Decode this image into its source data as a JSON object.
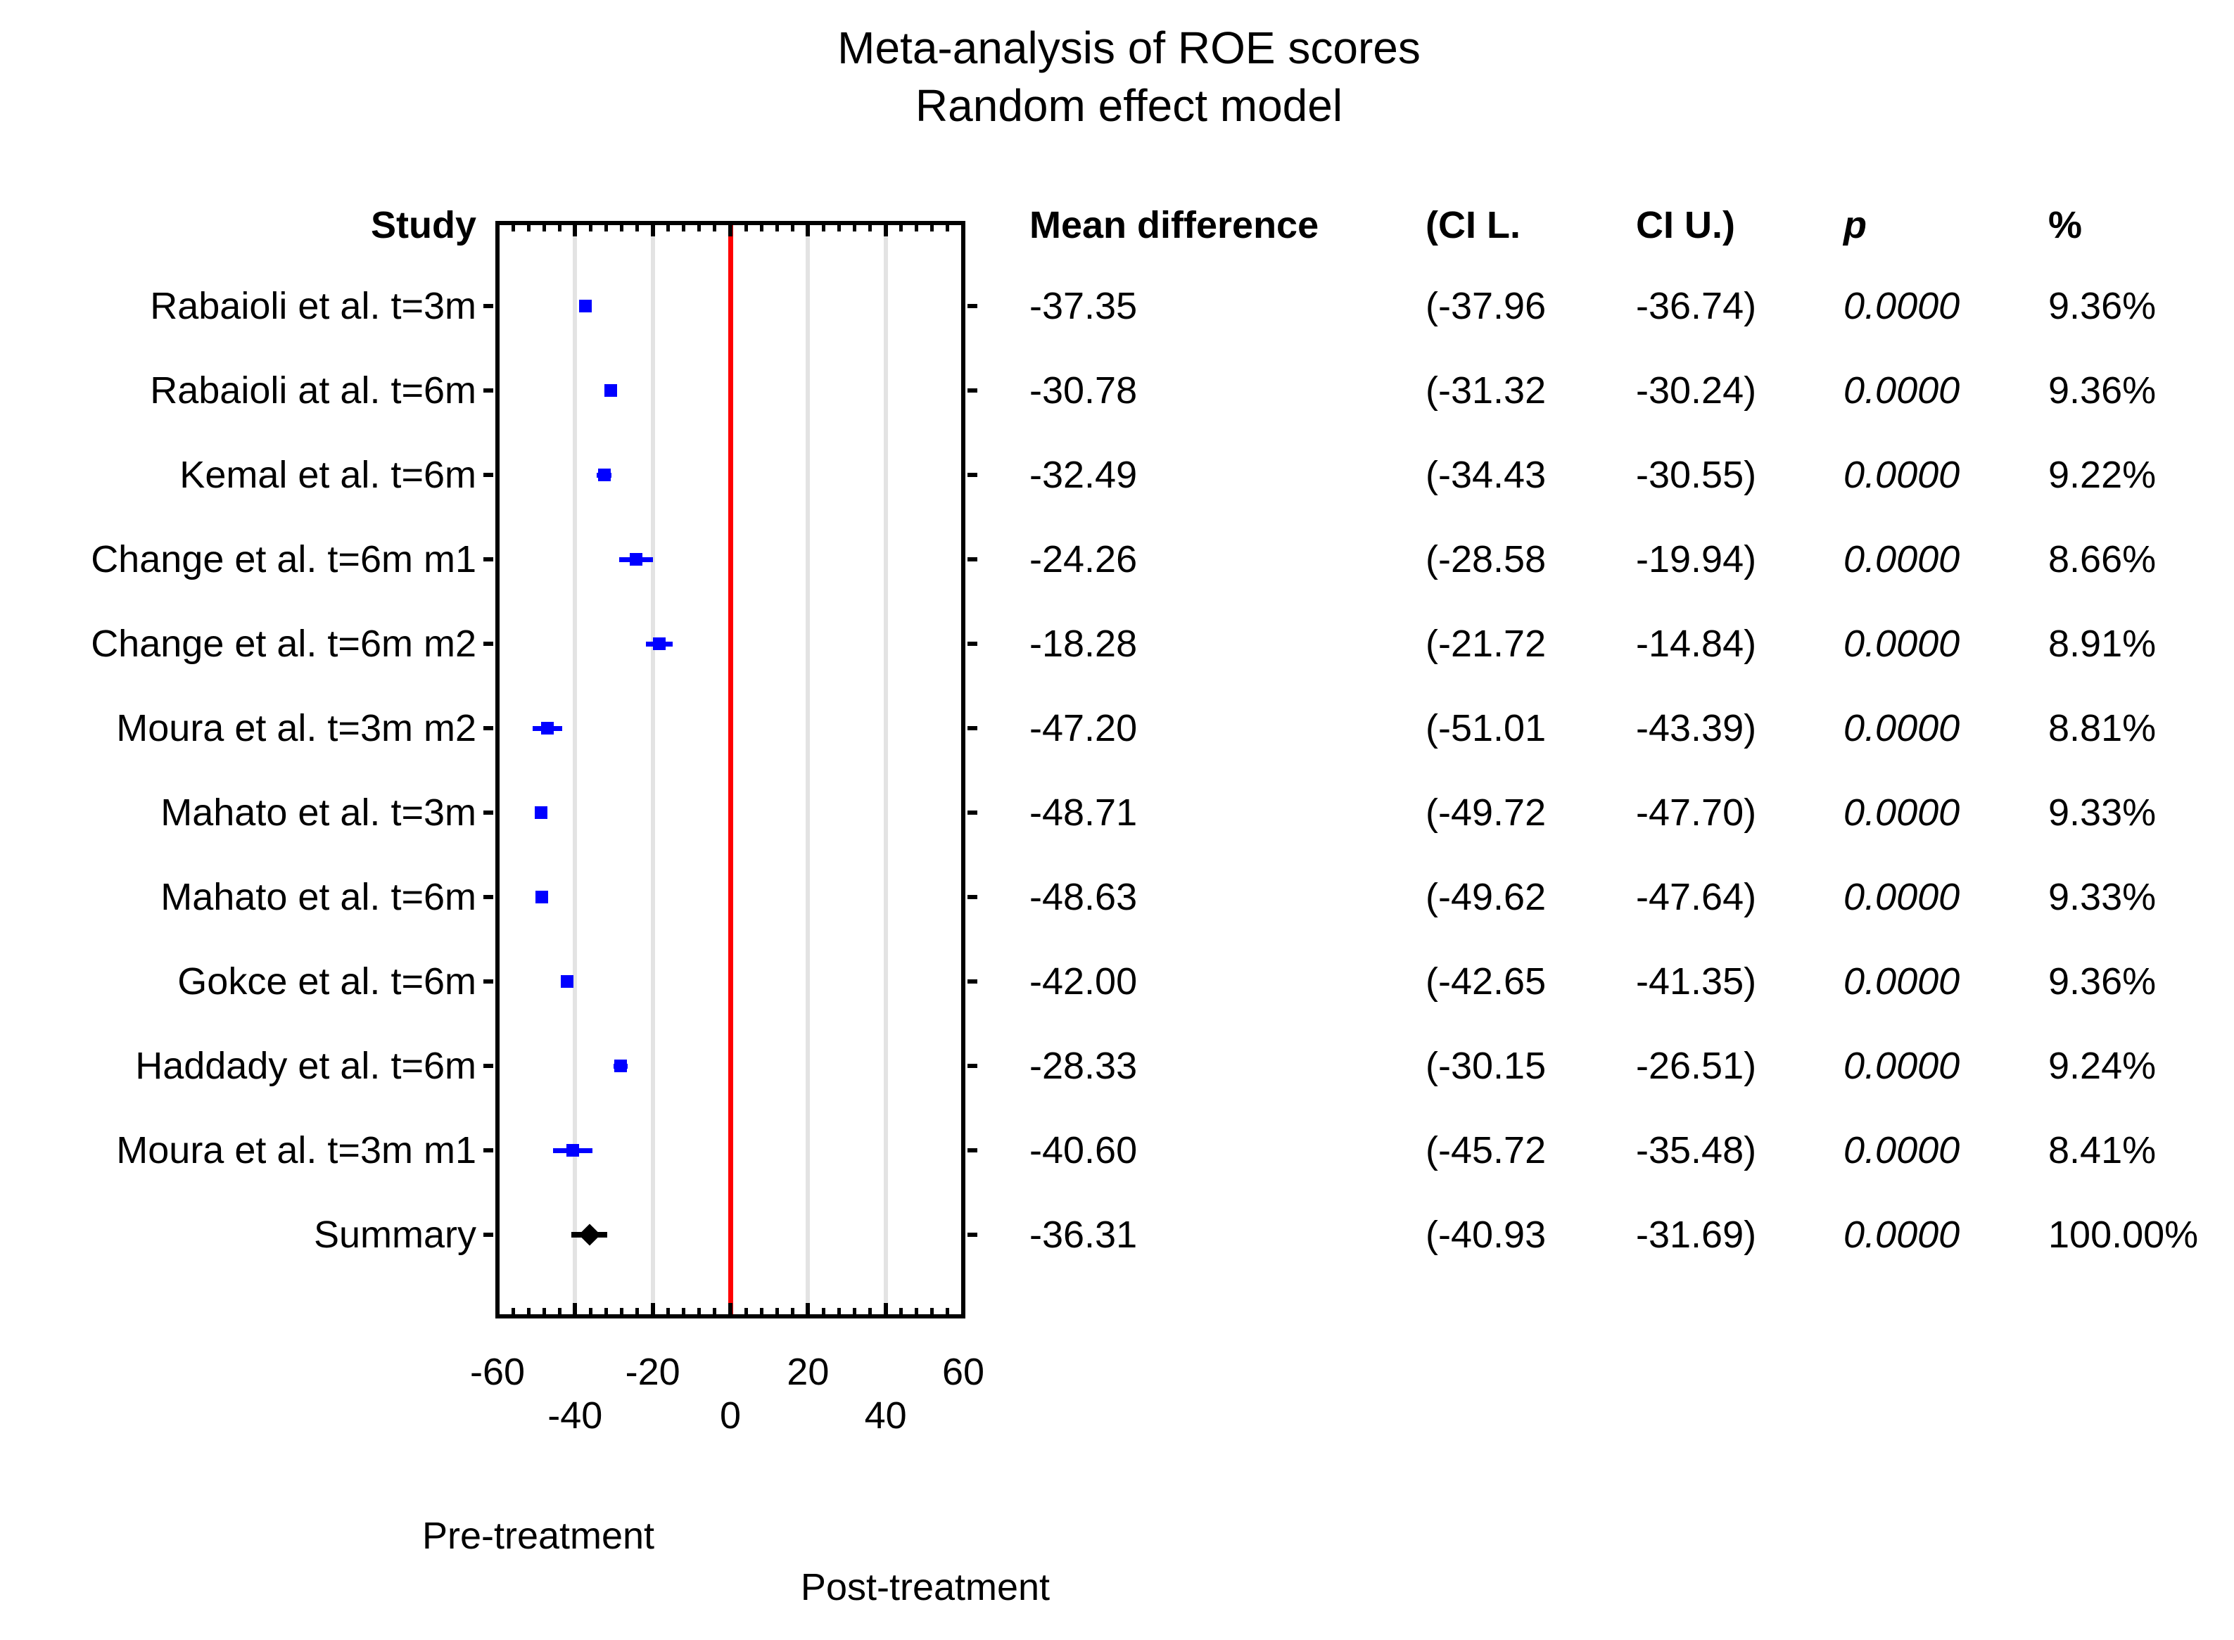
{
  "title": {
    "line1": "Meta-analysis of ROE scores",
    "line2": "Random effect model"
  },
  "columns": {
    "study": "Study",
    "mean": "Mean difference",
    "ci_l": "(CI L.",
    "ci_u": "CI U.)",
    "p": "p",
    "weight": "%"
  },
  "axis": {
    "xlim": [
      -60,
      60
    ],
    "major_tick_step": 20,
    "minor_tick_step": 4,
    "gridlines_u": [
      -40,
      -20,
      20,
      40
    ],
    "tick_labels_row1": [
      {
        "u": -60,
        "label": "-60"
      },
      {
        "u": -20,
        "label": "-20"
      },
      {
        "u": 20,
        "label": "20"
      },
      {
        "u": 60,
        "label": "60"
      }
    ],
    "tick_labels_row2": [
      {
        "u": -40,
        "label": "-40"
      },
      {
        "u": 0,
        "label": "0"
      },
      {
        "u": 40,
        "label": "40"
      }
    ],
    "grid_color": "#e3e3e3",
    "zero_line_color": "#ff0000"
  },
  "footer": {
    "left_label": "Pre-treatment",
    "right_label": "Post-treatment"
  },
  "colors": {
    "study_marker": "#0000ff",
    "summary_marker": "#000000"
  },
  "chart_data": {
    "type": "scatter",
    "subtype": "forest-plot",
    "title": "Meta-analysis of ROE scores",
    "subtitle": "Random effect model",
    "xlim": [
      -60,
      60
    ],
    "zero_reference_line": 0,
    "grid": true,
    "studies": [
      {
        "label": "Rabaioli et al. t=3m",
        "mean": -37.35,
        "ci_lower": -37.96,
        "ci_upper": -36.74,
        "mean_text": "-37.35",
        "ci_l_text": "(-37.96",
        "ci_u_text": "-36.74)",
        "p_text": "0.0000",
        "weight_text": "9.36%",
        "summary": false
      },
      {
        "label": "Rabaioli at al. t=6m",
        "mean": -30.78,
        "ci_lower": -31.32,
        "ci_upper": -30.24,
        "mean_text": "-30.78",
        "ci_l_text": "(-31.32",
        "ci_u_text": "-30.24)",
        "p_text": "0.0000",
        "weight_text": "9.36%",
        "summary": false
      },
      {
        "label": "Kemal et al. t=6m",
        "mean": -32.49,
        "ci_lower": -34.43,
        "ci_upper": -30.55,
        "mean_text": "-32.49",
        "ci_l_text": "(-34.43",
        "ci_u_text": "-30.55)",
        "p_text": "0.0000",
        "weight_text": "9.22%",
        "summary": false
      },
      {
        "label": "Change et al. t=6m m1",
        "mean": -24.26,
        "ci_lower": -28.58,
        "ci_upper": -19.94,
        "mean_text": "-24.26",
        "ci_l_text": "(-28.58",
        "ci_u_text": "-19.94)",
        "p_text": "0.0000",
        "weight_text": "8.66%",
        "summary": false
      },
      {
        "label": "Change et al. t=6m m2",
        "mean": -18.28,
        "ci_lower": -21.72,
        "ci_upper": -14.84,
        "mean_text": "-18.28",
        "ci_l_text": "(-21.72",
        "ci_u_text": "-14.84)",
        "p_text": "0.0000",
        "weight_text": "8.91%",
        "summary": false
      },
      {
        "label": "Moura et al. t=3m m2",
        "mean": -47.2,
        "ci_lower": -51.01,
        "ci_upper": -43.39,
        "mean_text": "-47.20",
        "ci_l_text": "(-51.01",
        "ci_u_text": "-43.39)",
        "p_text": "0.0000",
        "weight_text": "8.81%",
        "summary": false
      },
      {
        "label": "Mahato et al.  t=3m",
        "mean": -48.71,
        "ci_lower": -49.72,
        "ci_upper": -47.7,
        "mean_text": "-48.71",
        "ci_l_text": "(-49.72",
        "ci_u_text": "-47.70)",
        "p_text": "0.0000",
        "weight_text": "9.33%",
        "summary": false
      },
      {
        "label": "Mahato et al. t=6m",
        "mean": -48.63,
        "ci_lower": -49.62,
        "ci_upper": -47.64,
        "mean_text": "-48.63",
        "ci_l_text": "(-49.62",
        "ci_u_text": "-47.64)",
        "p_text": "0.0000",
        "weight_text": "9.33%",
        "summary": false
      },
      {
        "label": "Gokce et al. t=6m",
        "mean": -42.0,
        "ci_lower": -42.65,
        "ci_upper": -41.35,
        "mean_text": "-42.00",
        "ci_l_text": "(-42.65",
        "ci_u_text": "-41.35)",
        "p_text": "0.0000",
        "weight_text": "9.36%",
        "summary": false
      },
      {
        "label": "Haddady et al. t=6m",
        "mean": -28.33,
        "ci_lower": -30.15,
        "ci_upper": -26.51,
        "mean_text": "-28.33",
        "ci_l_text": "(-30.15",
        "ci_u_text": "-26.51)",
        "p_text": "0.0000",
        "weight_text": "9.24%",
        "summary": false
      },
      {
        "label": "Moura et al. t=3m m1",
        "mean": -40.6,
        "ci_lower": -45.72,
        "ci_upper": -35.48,
        "mean_text": "-40.60",
        "ci_l_text": "(-45.72",
        "ci_u_text": "-35.48)",
        "p_text": "0.0000",
        "weight_text": "8.41%",
        "summary": false
      },
      {
        "label": "Summary",
        "mean": -36.31,
        "ci_lower": -40.93,
        "ci_upper": -31.69,
        "mean_text": "-36.31",
        "ci_l_text": "(-40.93",
        "ci_u_text": "-31.69)",
        "p_text": "0.0000",
        "weight_text": "100.00%",
        "summary": true
      }
    ]
  }
}
